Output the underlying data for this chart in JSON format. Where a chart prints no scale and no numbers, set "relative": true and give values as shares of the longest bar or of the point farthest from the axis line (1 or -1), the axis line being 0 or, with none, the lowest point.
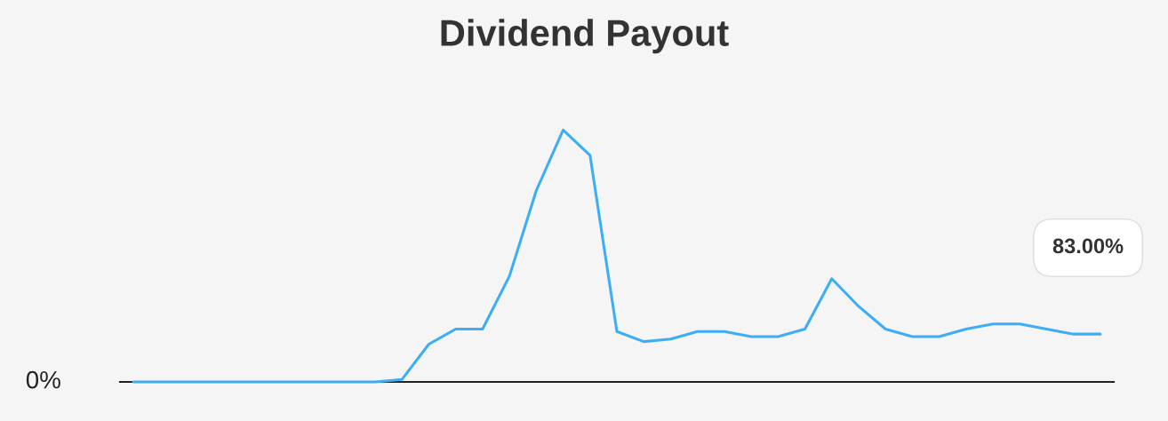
{
  "chart_data": {
    "type": "line",
    "title": "Dividend Payout",
    "relative": true,
    "categories": [
      null,
      null,
      null,
      null,
      null,
      null,
      null,
      null,
      null,
      null,
      null,
      null,
      null,
      null,
      null,
      null,
      null,
      null,
      null,
      null,
      null,
      null,
      null,
      null,
      null,
      null,
      null,
      null,
      null,
      null,
      null,
      null,
      null,
      null,
      null,
      null,
      null
    ],
    "series": [
      {
        "color": "#3daef5",
        "values": [
          0,
          0,
          0,
          0,
          0,
          0,
          0,
          0,
          0,
          0,
          0.01,
          0.15,
          0.21,
          0.21,
          0.42,
          0.76,
          1,
          0.9,
          0.2,
          0.16,
          0.17,
          0.2,
          0.2,
          0.18,
          0.18,
          0.21,
          0.41,
          0.3,
          0.21,
          0.18,
          0.18,
          0.21,
          0.23,
          0.23,
          0.21,
          0.19,
          0.19
        ]
      }
    ],
    "annotations": [
      "0%",
      "83.00%"
    ],
    "grid": false,
    "legend": false,
    "marker": "none",
    "line_style": "solid"
  }
}
